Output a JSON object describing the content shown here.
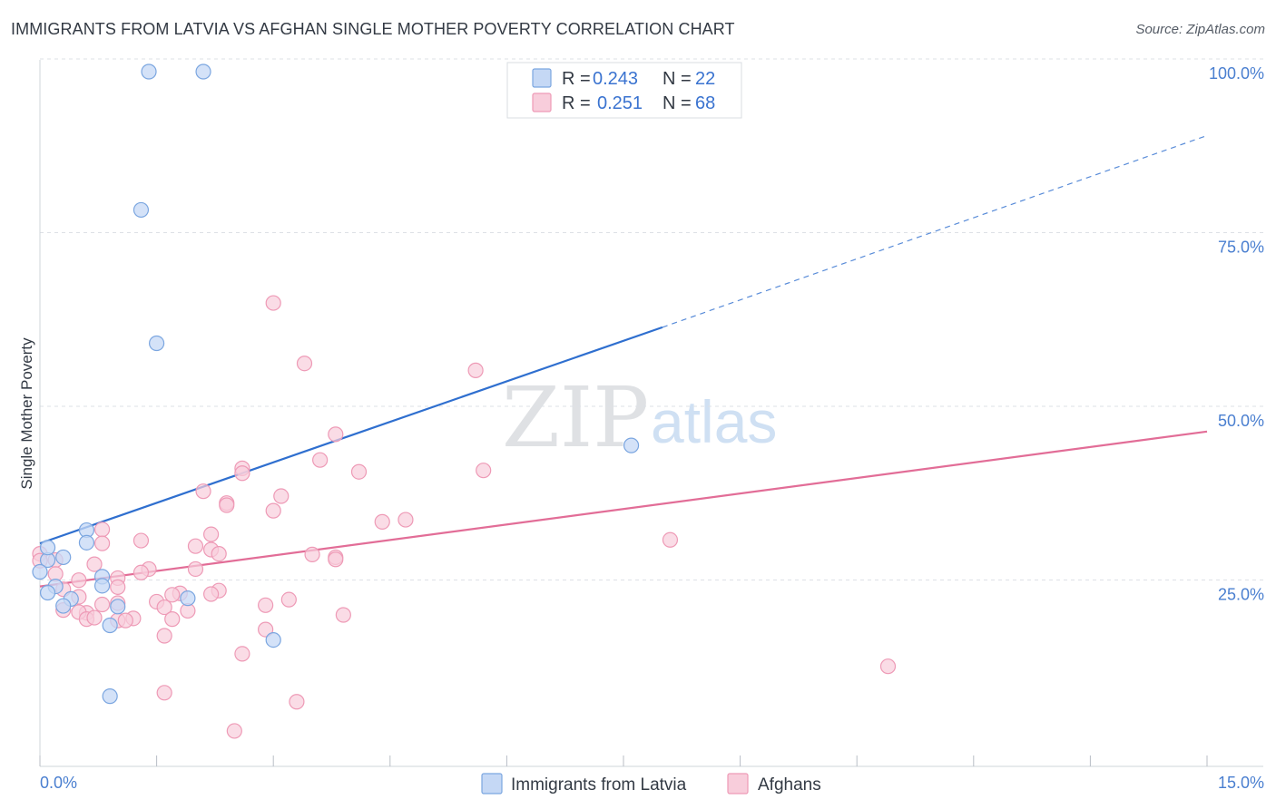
{
  "header": {
    "title": "IMMIGRANTS FROM LATVIA VS AFGHAN SINGLE MOTHER POVERTY CORRELATION CHART",
    "source": "Source: ZipAtlas.com"
  },
  "watermark": {
    "zip": "ZIP",
    "atlas": "atlas"
  },
  "legend": {
    "row1": {
      "r_label": "R = ",
      "r_value": "0.243",
      "n_label": "N = ",
      "n_value": "22"
    },
    "row2": {
      "r_label": "R = ",
      "r_value": "0.251",
      "n_label": "N = ",
      "n_value": "68"
    }
  },
  "colors": {
    "latvia_fill": "#c5d8f5",
    "latvia_stroke": "#7ba6e0",
    "latvia_line": "#2f6fcf",
    "afghan_fill": "#f8cddb",
    "afghan_stroke": "#ee9ab6",
    "afghan_line": "#e26d97",
    "tick_text": "#4a7fd0"
  },
  "chart_data": {
    "type": "scatter",
    "title": "IMMIGRANTS FROM LATVIA VS AFGHAN SINGLE MOTHER POVERTY CORRELATION CHART",
    "xlabel": "",
    "ylabel": "Single Mother Poverty",
    "xlim": [
      0,
      15
    ],
    "ylim": [
      0,
      100
    ],
    "x_tick_labels": [
      "0.0%",
      "15.0%"
    ],
    "y_tick_labels": [
      "25.0%",
      "50.0%",
      "75.0%",
      "100.0%"
    ],
    "y_tick_values": [
      25,
      50,
      75,
      100
    ],
    "grid": true,
    "legend_position": "top-center",
    "series": [
      {
        "name": "Immigrants from Latvia",
        "r": 0.243,
        "n": 22,
        "trend": {
          "x0": 0,
          "y0": 32.1,
          "x1": 8.0,
          "y1": 63.2,
          "dash_x1": 15.0,
          "dash_y1": 90.8
        },
        "points": [
          [
            1.4,
            100.0
          ],
          [
            2.1,
            100.0
          ],
          [
            1.3,
            80.1
          ],
          [
            1.5,
            60.9
          ],
          [
            7.6,
            46.2
          ],
          [
            0.1,
            29.7
          ],
          [
            0.3,
            30.1
          ],
          [
            0.6,
            34.0
          ],
          [
            0.6,
            32.2
          ],
          [
            0.8,
            27.3
          ],
          [
            0.8,
            26.0
          ],
          [
            0.2,
            25.9
          ],
          [
            0.1,
            25.0
          ],
          [
            0.4,
            24.1
          ],
          [
            0.3,
            23.1
          ],
          [
            1.0,
            23.0
          ],
          [
            1.9,
            24.2
          ],
          [
            0.9,
            20.3
          ],
          [
            3.0,
            18.2
          ],
          [
            0.9,
            10.1
          ],
          [
            0.0,
            28.0
          ],
          [
            0.1,
            31.5
          ]
        ]
      },
      {
        "name": "Afghans",
        "r": 0.251,
        "n": 68,
        "trend": {
          "x0": 0,
          "y0": 25.9,
          "x1": 15.0,
          "y1": 48.2
        },
        "points": [
          [
            3.0,
            66.7
          ],
          [
            3.4,
            58.0
          ],
          [
            5.6,
            57.0
          ],
          [
            3.8,
            47.8
          ],
          [
            3.6,
            44.1
          ],
          [
            5.7,
            42.6
          ],
          [
            4.1,
            42.4
          ],
          [
            2.6,
            42.9
          ],
          [
            2.6,
            42.2
          ],
          [
            3.1,
            38.9
          ],
          [
            2.1,
            39.6
          ],
          [
            2.4,
            37.9
          ],
          [
            2.4,
            37.6
          ],
          [
            3.0,
            36.8
          ],
          [
            4.7,
            35.5
          ],
          [
            4.4,
            35.2
          ],
          [
            0.8,
            34.1
          ],
          [
            2.2,
            33.4
          ],
          [
            1.3,
            32.5
          ],
          [
            0.8,
            32.1
          ],
          [
            2.0,
            31.7
          ],
          [
            2.2,
            31.2
          ],
          [
            2.3,
            30.6
          ],
          [
            3.5,
            30.5
          ],
          [
            3.8,
            30.1
          ],
          [
            3.8,
            29.8
          ],
          [
            0.2,
            29.7
          ],
          [
            0.7,
            29.1
          ],
          [
            0.0,
            30.6
          ],
          [
            0.0,
            29.6
          ],
          [
            1.4,
            28.4
          ],
          [
            1.3,
            27.9
          ],
          [
            2.0,
            28.4
          ],
          [
            0.2,
            27.7
          ],
          [
            0.5,
            26.8
          ],
          [
            1.0,
            27.1
          ],
          [
            1.0,
            25.8
          ],
          [
            0.3,
            25.5
          ],
          [
            0.5,
            24.4
          ],
          [
            2.3,
            25.3
          ],
          [
            1.8,
            24.9
          ],
          [
            1.7,
            24.7
          ],
          [
            2.2,
            24.8
          ],
          [
            3.2,
            24.0
          ],
          [
            1.5,
            23.7
          ],
          [
            1.0,
            23.5
          ],
          [
            0.8,
            23.3
          ],
          [
            1.6,
            22.9
          ],
          [
            2.9,
            23.2
          ],
          [
            1.9,
            22.4
          ],
          [
            0.6,
            22.1
          ],
          [
            0.5,
            22.2
          ],
          [
            0.3,
            22.5
          ],
          [
            1.2,
            21.3
          ],
          [
            1.0,
            21.0
          ],
          [
            1.7,
            21.2
          ],
          [
            1.1,
            21.0
          ],
          [
            0.6,
            21.2
          ],
          [
            0.7,
            21.4
          ],
          [
            3.9,
            21.8
          ],
          [
            2.9,
            19.7
          ],
          [
            1.6,
            18.8
          ],
          [
            2.6,
            16.2
          ],
          [
            10.9,
            14.4
          ],
          [
            1.6,
            10.6
          ],
          [
            3.3,
            9.3
          ],
          [
            2.5,
            5.1
          ],
          [
            8.1,
            32.6
          ]
        ]
      }
    ]
  }
}
